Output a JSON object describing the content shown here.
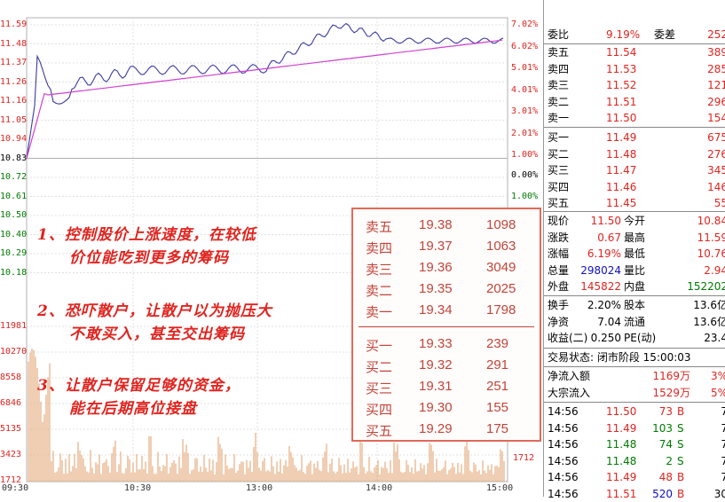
{
  "chart": {
    "price_ticks": [
      "11.59",
      "11.48",
      "11.37",
      "11.26",
      "11.16",
      "11.05",
      "10.94",
      "10.83",
      "10.72",
      "10.61",
      "10.50",
      "10.40",
      "10.29",
      "10.18"
    ],
    "pct_ticks_red": [
      "7.02%",
      "6.02%",
      "5.01%",
      "4.01%",
      "3.01%",
      "2.01%",
      "1.00%"
    ],
    "pct_tick_zero": "0.00%",
    "pct_tick_neg": "1.00%",
    "volume_ticks": [
      "11981",
      "10270",
      "8558",
      "6846",
      "5135",
      "3423",
      "1712"
    ],
    "volume_tick_right": "1712",
    "time_ticks": [
      "09:30",
      "10:30",
      "13:00",
      "14:00",
      "15:00"
    ]
  },
  "notes": {
    "n1_line1": "1、控制股价上涨速度，在较低",
    "n1_line2": "价位能吃到更多的筹码",
    "n2_line1": "2、恐吓散户，让散户以为抛压大",
    "n2_line2": "不敢买入，甚至交出筹码",
    "n3_line1": "3、让散户保留足够的资金，",
    "n3_line2": "能在后期高位接盘"
  },
  "orderbook": {
    "sell": [
      {
        "label": "卖五",
        "price": "19.38",
        "vol": "1098"
      },
      {
        "label": "卖四",
        "price": "19.37",
        "vol": "1063"
      },
      {
        "label": "卖三",
        "price": "19.36",
        "vol": "3049"
      },
      {
        "label": "卖二",
        "price": "19.35",
        "vol": "2025"
      },
      {
        "label": "卖一",
        "price": "19.34",
        "vol": "1798"
      }
    ],
    "buy": [
      {
        "label": "买一",
        "price": "19.33",
        "vol": "239"
      },
      {
        "label": "买二",
        "price": "19.32",
        "vol": "291"
      },
      {
        "label": "买三",
        "price": "19.31",
        "vol": "251"
      },
      {
        "label": "买四",
        "price": "19.30",
        "vol": "155"
      },
      {
        "label": "买五",
        "price": "19.29",
        "vol": "175"
      }
    ]
  },
  "panel": {
    "wei": {
      "l1": "委比",
      "v1": "9.19%",
      "l2": "委差",
      "v2": "252"
    },
    "asks": [
      {
        "label": "卖五",
        "price": "11.54",
        "vol": "389"
      },
      {
        "label": "卖四",
        "price": "11.53",
        "vol": "285"
      },
      {
        "label": "卖三",
        "price": "11.52",
        "vol": "121"
      },
      {
        "label": "卖二",
        "price": "11.51",
        "vol": "296"
      },
      {
        "label": "卖一",
        "price": "11.50",
        "vol": "154"
      }
    ],
    "bids": [
      {
        "label": "买一",
        "price": "11.49",
        "vol": "675"
      },
      {
        "label": "买二",
        "price": "11.48",
        "vol": "276"
      },
      {
        "label": "买三",
        "price": "11.47",
        "vol": "345"
      },
      {
        "label": "买四",
        "price": "11.46",
        "vol": "146"
      },
      {
        "label": "买五",
        "price": "11.45",
        "vol": "55"
      }
    ],
    "stats": [
      {
        "l1": "现价",
        "v1": "11.50",
        "l2": "今开",
        "v2": "10.84"
      },
      {
        "l1": "涨跌",
        "v1": "0.67",
        "l2": "最高",
        "v2": "11.59"
      },
      {
        "l1": "涨幅",
        "v1": "6.19%",
        "l2": "最低",
        "v2": "10.76"
      },
      {
        "l1": "总量",
        "v1": "298024",
        "l2": "量比",
        "v2": "2.94"
      },
      {
        "l1": "外盘",
        "v1": "145822",
        "l2": "内盘",
        "v2": "152202"
      }
    ],
    "stats2": [
      {
        "l1": "换手",
        "v1": "2.20%",
        "l2": "股本",
        "v2": "13.6亿"
      },
      {
        "l1": "净资",
        "v1": "7.04",
        "l2": "流通",
        "v2": "13.6亿"
      },
      {
        "l1": "收益(二)",
        "v1": "0.250",
        "l2": "PE(动)",
        "v2": "23.4"
      }
    ],
    "status": "交易状态: 闭市阶段 15:00:03",
    "flows": [
      {
        "label": "净流入额",
        "value": "1169万",
        "pct": "3%"
      },
      {
        "label": "大宗流入",
        "value": "1529万",
        "pct": "5%"
      }
    ],
    "ticks": [
      {
        "time": "14:56",
        "price": "11.50",
        "vol": "73",
        "side": "B",
        "n": "7"
      },
      {
        "time": "14:56",
        "price": "11.49",
        "vol": "103",
        "side": "S",
        "n": "7"
      },
      {
        "time": "14:56",
        "price": "11.48",
        "vol": "74",
        "side": "S",
        "n": "7"
      },
      {
        "time": "14:56",
        "price": "11.48",
        "vol": "2",
        "side": "S",
        "n": "7"
      },
      {
        "time": "14:56",
        "price": "11.49",
        "vol": "48",
        "side": "B",
        "n": "7"
      },
      {
        "time": "14:56",
        "price": "11.51",
        "vol": "520",
        "side": "B",
        "n": "30"
      }
    ]
  },
  "colors": {
    "up": "#e0241f",
    "down": "#007a00",
    "price_line": "#3a3aa0",
    "avg_line": "#d040d0",
    "volume": "#e8b48a"
  }
}
